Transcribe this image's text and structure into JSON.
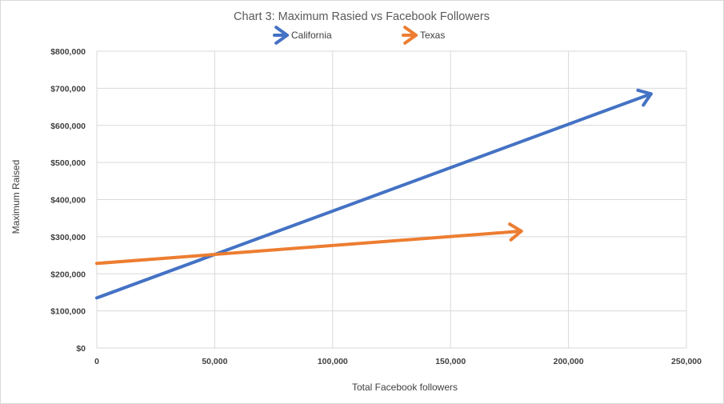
{
  "chart_data": {
    "type": "line",
    "title": "Chart 3: Maximum Rasied vs Facebook Followers",
    "xlabel": "Total Facebook followers",
    "ylabel": "Maximum Raised",
    "xlim": [
      0,
      250000
    ],
    "ylim": [
      0,
      800000
    ],
    "x_ticks": [
      0,
      50000,
      100000,
      150000,
      200000,
      250000
    ],
    "y_ticks": [
      0,
      100000,
      200000,
      300000,
      400000,
      500000,
      600000,
      700000,
      800000
    ],
    "x_tick_labels": [
      "0",
      "50,000",
      "100,000",
      "150,000",
      "200,000",
      "250,000"
    ],
    "y_tick_labels": [
      "$0",
      "$100,000",
      "$200,000",
      "$300,000",
      "$400,000",
      "$500,000",
      "$600,000",
      "$700,000",
      "$800,000"
    ],
    "grid": true,
    "legend_position": "top",
    "series": [
      {
        "name": "California",
        "color": "#4472C4",
        "marker": "arrow",
        "x": [
          0,
          235000
        ],
        "y": [
          135000,
          685000
        ]
      },
      {
        "name": "Texas",
        "color": "#ED7D31",
        "marker": "arrow",
        "x": [
          0,
          180000
        ],
        "y": [
          228000,
          315000
        ]
      }
    ]
  }
}
